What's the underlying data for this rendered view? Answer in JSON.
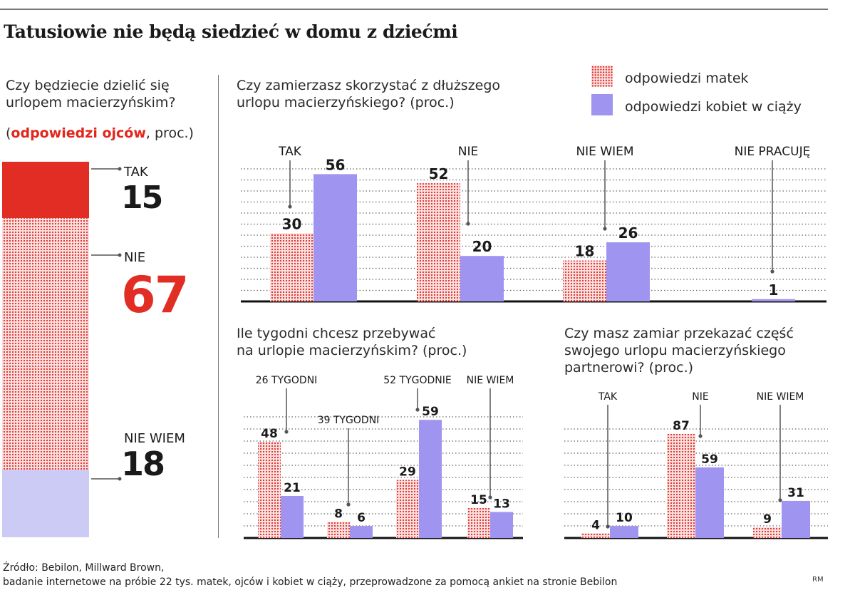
{
  "title": "Tatusiowie nie będą siedzieć w domu z dziećmi",
  "colors": {
    "mothers": "#e0322a",
    "mothers_bg": "#fbe1e1",
    "pregnant": "#9f95f1",
    "fathers_yes": "#e22d25",
    "fathers_unknown": "#cbcbf6"
  },
  "legend": {
    "mothers": "odpowiedzi matek",
    "pregnant": "odpowiedzi kobiet w ciąży"
  },
  "left_panel": {
    "question_line1": "Czy będziecie dzielić się",
    "question_line2": "urlopem macierzyńskim?",
    "paren_open": "(",
    "highlight": "odpowiedzi ojców",
    "paren_rest": ", proc.)"
  },
  "chart1": {
    "question_line1": "Czy zamierzasz skorzystać z dłuższego",
    "question_line2": "urlopu macierzyńskiego? (proc.)"
  },
  "chart2": {
    "question_line1": "Ile tygodni chcesz przebywać",
    "question_line2": "na urlopie macierzyńskim? (proc.)"
  },
  "chart3": {
    "question_line1": "Czy masz zamiar przekazać część",
    "question_line2": "swojego urlopu macierzyńskiego",
    "question_line3": "partnerowi? (proc.)"
  },
  "source": {
    "line1": "Źródło: Bebilon, Millward Brown,",
    "line2": "badanie internetowe na próbie 22 tys. matek, ojców i kobiet w ciąży, przeprowadzone za pomocą ankiet na stronie Bebilon"
  },
  "credit": "RM",
  "chart_data": [
    {
      "type": "bar",
      "subject": "fathers",
      "categories": [
        "TAK",
        "NIE",
        "NIE WIEM"
      ],
      "values": [
        15,
        67,
        18
      ]
    },
    {
      "type": "bar",
      "categories": [
        "TAK",
        "NIE",
        "NIE WIEM",
        "NIE PRACUJĘ"
      ],
      "series": [
        {
          "name": "odpowiedzi matek",
          "values": [
            30,
            52,
            18,
            null
          ]
        },
        {
          "name": "odpowiedzi kobiet w ciąży",
          "values": [
            56,
            20,
            26,
            1
          ]
        }
      ],
      "ylim": [
        0,
        60
      ]
    },
    {
      "type": "bar",
      "categories": [
        "26 TYGODNI",
        "39 TYGODNI",
        "52 TYGODNIE",
        "NIE WIEM"
      ],
      "series": [
        {
          "name": "odpowiedzi matek",
          "values": [
            48,
            8,
            29,
            15
          ]
        },
        {
          "name": "odpowiedzi kobiet w ciąży",
          "values": [
            21,
            6,
            59,
            13
          ]
        }
      ],
      "ylim": [
        0,
        60
      ]
    },
    {
      "type": "bar",
      "categories": [
        "TAK",
        "NIE",
        "NIE WIEM"
      ],
      "series": [
        {
          "name": "odpowiedzi matek",
          "values": [
            4,
            87,
            9
          ]
        },
        {
          "name": "odpowiedzi kobiet w ciąży",
          "values": [
            10,
            59,
            31
          ]
        }
      ],
      "ylim": [
        0,
        90
      ]
    }
  ]
}
